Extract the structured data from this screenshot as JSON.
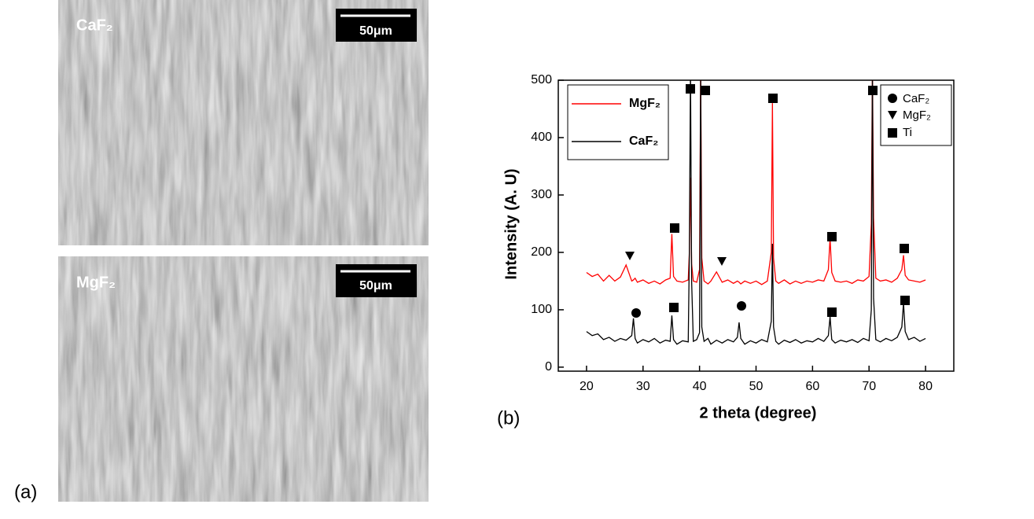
{
  "panel_labels": [
    "(a)",
    "(b)"
  ],
  "sem_images": [
    {
      "label": "CaF₂",
      "scale_bar": "50μm"
    },
    {
      "label": "MgF₂",
      "scale_bar": "50μm"
    }
  ],
  "chart_data": {
    "type": "line",
    "xlabel": "2 theta (degree)",
    "ylabel": "Intensity (A. U)",
    "x": [
      20,
      21,
      22,
      23,
      24,
      25,
      26,
      27,
      28,
      28.3,
      28.6,
      29,
      30,
      31,
      32,
      33,
      34,
      34.8,
      35.1,
      35.4,
      36,
      37,
      38,
      38.2,
      38.4,
      38.6,
      38.9,
      39.5,
      40,
      40.2,
      40.4,
      40.8,
      41.5,
      42,
      43,
      44,
      45,
      46,
      46.7,
      47,
      47.3,
      48,
      49,
      50,
      51,
      52,
      52.7,
      52.9,
      53.1,
      53.5,
      54,
      55,
      56,
      57,
      58,
      59,
      60,
      61,
      62,
      62.8,
      63.1,
      63.4,
      64,
      65,
      66,
      67,
      68,
      69,
      70,
      70.4,
      70.6,
      70.8,
      71.2,
      72,
      73,
      74,
      75,
      75.8,
      76.1,
      76.4,
      77,
      78,
      79,
      80
    ],
    "series": [
      {
        "name": "MgF₂",
        "color": "#ff0000",
        "values": [
          165,
          158,
          162,
          150,
          160,
          150,
          157,
          178,
          150,
          152,
          155,
          148,
          152,
          146,
          150,
          145,
          152,
          155,
          232,
          158,
          150,
          148,
          152,
          200,
          330,
          180,
          150,
          148,
          170,
          520,
          190,
          150,
          145,
          150,
          166,
          148,
          152,
          146,
          150,
          148,
          145,
          150,
          146,
          150,
          144,
          150,
          200,
          460,
          190,
          150,
          146,
          152,
          145,
          150,
          146,
          150,
          148,
          152,
          150,
          170,
          225,
          165,
          150,
          148,
          150,
          146,
          152,
          150,
          158,
          250,
          520,
          260,
          155,
          150,
          152,
          148,
          155,
          170,
          195,
          160,
          152,
          150,
          148,
          152
        ]
      },
      {
        "name": "CaF₂",
        "color": "#000000",
        "values": [
          62,
          55,
          58,
          48,
          52,
          45,
          50,
          47,
          55,
          85,
          50,
          42,
          48,
          44,
          50,
          42,
          47,
          45,
          90,
          48,
          40,
          46,
          44,
          200,
          520,
          150,
          45,
          48,
          60,
          520,
          70,
          45,
          50,
          40,
          47,
          42,
          48,
          44,
          52,
          78,
          50,
          40,
          46,
          42,
          48,
          44,
          80,
          215,
          70,
          45,
          40,
          47,
          43,
          48,
          42,
          46,
          44,
          50,
          45,
          55,
          88,
          48,
          42,
          47,
          44,
          48,
          43,
          50,
          46,
          100,
          520,
          120,
          48,
          44,
          50,
          46,
          52,
          70,
          112,
          62,
          48,
          52,
          45,
          50
        ]
      }
    ],
    "xlim": [
      15,
      85
    ],
    "ylim": [
      -7,
      500
    ],
    "xticks": [
      20,
      30,
      40,
      50,
      60,
      70,
      80
    ],
    "yticks": [
      0,
      100,
      200,
      300,
      400,
      500
    ],
    "phase_legend": [
      "CaF₂",
      "MgF₂",
      "Ti"
    ]
  }
}
